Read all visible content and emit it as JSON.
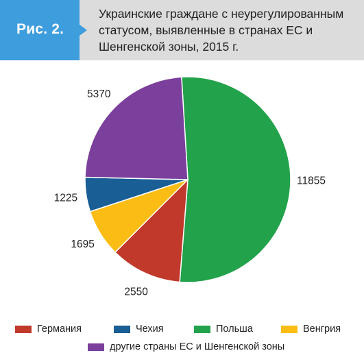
{
  "header": {
    "badge": "Рис. 2.",
    "title_lines": [
      "Украинские граждане с неурегулированным",
      "статусом, выявленные в странах ЕС и",
      "Шенгенской зоны, 2015 г."
    ]
  },
  "colors": {
    "header_bg": "#dcdcdc",
    "badge_bg": "#3e9ddd",
    "Германия": "#c0392b",
    "Чехия": "#1a5e96",
    "Польша": "#22a24a",
    "Венгрия": "#fbbd14",
    "другие": "#7b3f9c"
  },
  "chart_data": {
    "type": "pie",
    "title": "Украинские граждане с неурегулированным статусом, выявленные в странах ЕС и Шенгенской зоны, 2015 г.",
    "slices": [
      {
        "label": "Польша",
        "value": 11855,
        "value_label": "11855",
        "color": "#22a24a"
      },
      {
        "label": "Германия",
        "value": 2550,
        "value_label": "2550",
        "color": "#c0392b"
      },
      {
        "label": "Венгрия",
        "value": 1695,
        "value_label": "1695",
        "color": "#fbbd14"
      },
      {
        "label": "Чехия",
        "value": 1225,
        "value_label": "1225",
        "color": "#1a5e96"
      },
      {
        "label": "другие страны ЕС и Шенгенской зоны",
        "value": 5370,
        "value_label": "5370",
        "color": "#7b3f9c"
      }
    ],
    "legend": [
      {
        "label": "Германия",
        "color": "#c0392b"
      },
      {
        "label": "Чехия",
        "color": "#1a5e96"
      },
      {
        "label": "Польша",
        "color": "#22a24a"
      },
      {
        "label": "Венгрия",
        "color": "#fbbd14"
      },
      {
        "label": "другие страны ЕС и Шенгенской зоны",
        "color": "#7b3f9c"
      }
    ],
    "legend_position": "bottom"
  }
}
